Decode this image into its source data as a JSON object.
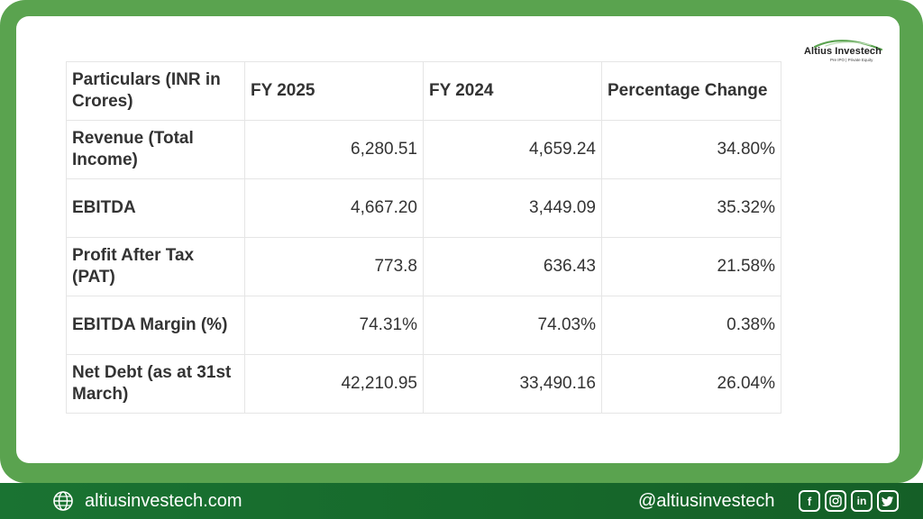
{
  "brand": {
    "name": "Altius Investech",
    "tagline": "Pre IPO | Private Equity",
    "accent_color": "#5aa34f",
    "footer_color": "#176f2a"
  },
  "table": {
    "headers": [
      "Particulars (INR in Crores)",
      "FY 2025",
      "FY 2024",
      "Percentage Change"
    ],
    "rows": [
      {
        "label": "Revenue (Total Income)",
        "fy2025": "6,280.51",
        "fy2024": "4,659.24",
        "change": "34.80%"
      },
      {
        "label": "EBITDA",
        "fy2025": "4,667.20",
        "fy2024": "3,449.09",
        "change": "35.32%"
      },
      {
        "label": "Profit After Tax (PAT)",
        "fy2025": "773.8",
        "fy2024": "636.43",
        "change": "21.58%"
      },
      {
        "label": "EBITDA Margin (%)",
        "fy2025": "74.31%",
        "fy2024": "74.03%",
        "change": "0.38%"
      },
      {
        "label": "Net Debt (as at 31st March)",
        "fy2025": "42,210.95",
        "fy2024": "33,490.16",
        "change": "26.04%"
      }
    ]
  },
  "footer": {
    "website": "altiusinvestech.com",
    "handle": "@altiusinvestech",
    "website_icon": "globe-icon",
    "social_icons": [
      "facebook-icon",
      "instagram-icon",
      "linkedin-icon",
      "twitter-icon"
    ]
  }
}
